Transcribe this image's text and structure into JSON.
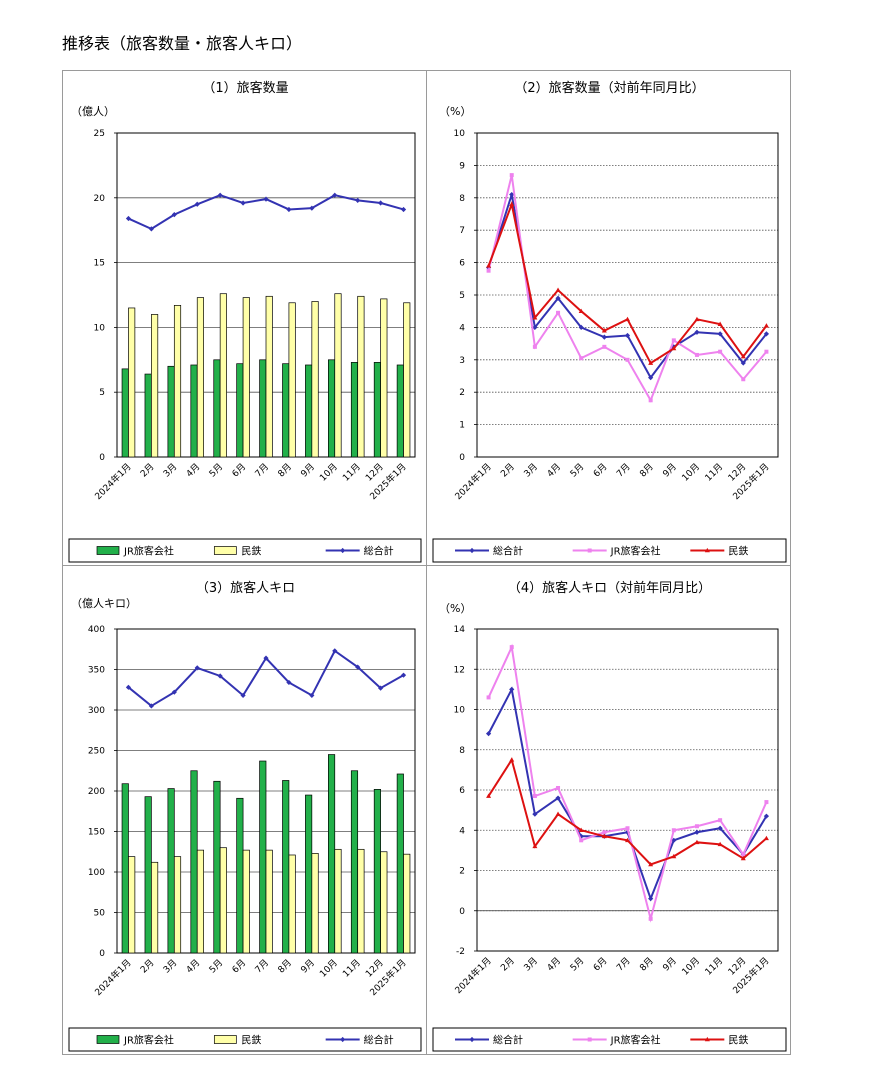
{
  "page_title": "推移表（旅客数量・旅客人キロ）",
  "chart_data": [
    {
      "type": "bar",
      "title": "（1）旅客数量",
      "unit_label": "（億人）",
      "ylim": [
        0,
        25
      ],
      "yticks": [
        "0",
        "5",
        "10",
        "15",
        "20",
        "25"
      ],
      "categories": [
        "2024年1月",
        "2月",
        "3月",
        "4月",
        "5月",
        "6月",
        "7月",
        "8月",
        "9月",
        "10月",
        "11月",
        "12月",
        "2025年1月"
      ],
      "grid": true,
      "legend": "bottom",
      "series": [
        {
          "name": "JR旅客会社",
          "kind": "bar",
          "color": "#22b04a",
          "values": [
            6.8,
            6.4,
            7.0,
            7.1,
            7.5,
            7.2,
            7.5,
            7.2,
            7.1,
            7.5,
            7.3,
            7.3,
            7.1
          ]
        },
        {
          "name": "民鉄",
          "kind": "bar",
          "color": "#ffffa8",
          "values": [
            11.5,
            11.0,
            11.7,
            12.3,
            12.6,
            12.3,
            12.4,
            11.9,
            12.0,
            12.6,
            12.4,
            12.2,
            11.9
          ]
        },
        {
          "name": "総合計",
          "kind": "line",
          "color": "#3333b2",
          "values": [
            18.4,
            17.6,
            18.7,
            19.5,
            20.2,
            19.6,
            19.9,
            19.1,
            19.2,
            20.2,
            19.8,
            19.6,
            19.1
          ]
        }
      ]
    },
    {
      "type": "line",
      "title": "（2）旅客数量（対前年同月比）",
      "unit_label": "（%）",
      "ylim": [
        0,
        10
      ],
      "yticks": [
        "0",
        "1",
        "2",
        "3",
        "4",
        "5",
        "6",
        "7",
        "8",
        "9",
        "10"
      ],
      "categories": [
        "2024年1月",
        "2月",
        "3月",
        "4月",
        "5月",
        "6月",
        "7月",
        "8月",
        "9月",
        "10月",
        "11月",
        "12月",
        "2025年1月"
      ],
      "grid": true,
      "legend": "bottom",
      "series": [
        {
          "name": "総合計",
          "color": "#3333b2",
          "values": [
            5.85,
            8.1,
            4.0,
            4.9,
            4.0,
            3.7,
            3.75,
            2.45,
            3.4,
            3.85,
            3.8,
            2.9,
            3.8
          ]
        },
        {
          "name": "JR旅客会社",
          "color": "#ee82ee",
          "values": [
            5.75,
            8.7,
            3.4,
            4.45,
            3.05,
            3.4,
            3.0,
            1.75,
            3.6,
            3.15,
            3.25,
            2.4,
            3.25
          ]
        },
        {
          "name": "民鉄",
          "color": "#dd1111",
          "values": [
            5.9,
            7.8,
            4.3,
            5.15,
            4.5,
            3.9,
            4.25,
            2.9,
            3.35,
            4.25,
            4.1,
            3.1,
            4.05
          ]
        }
      ]
    },
    {
      "type": "bar",
      "title": "（3）旅客人キロ",
      "unit_label": "（億人キロ）",
      "ylim": [
        0,
        400
      ],
      "yticks": [
        "0",
        "50",
        "100",
        "150",
        "200",
        "250",
        "300",
        "350",
        "400"
      ],
      "categories": [
        "2024年1月",
        "2月",
        "3月",
        "4月",
        "5月",
        "6月",
        "7月",
        "8月",
        "9月",
        "10月",
        "11月",
        "12月",
        "2025年1月"
      ],
      "grid": true,
      "legend": "bottom",
      "series": [
        {
          "name": "JR旅客会社",
          "kind": "bar",
          "color": "#22b04a",
          "values": [
            209,
            193,
            203,
            225,
            212,
            191,
            237,
            213,
            195,
            245,
            225,
            202,
            221
          ]
        },
        {
          "name": "民鉄",
          "kind": "bar",
          "color": "#ffffa8",
          "values": [
            119,
            112,
            119,
            127,
            130,
            127,
            127,
            121,
            123,
            128,
            128,
            125,
            122
          ]
        },
        {
          "name": "総合計",
          "kind": "line",
          "color": "#3333b2",
          "values": [
            328,
            305,
            322,
            352,
            342,
            318,
            364,
            334,
            318,
            373,
            353,
            327,
            343
          ]
        }
      ]
    },
    {
      "type": "line",
      "title": "（4）旅客人キロ（対前年同月比）",
      "unit_label": "（%）",
      "ylim": [
        -2,
        14
      ],
      "yticks": [
        "-2",
        "0",
        "2",
        "4",
        "6",
        "8",
        "10",
        "12",
        "14"
      ],
      "categories": [
        "2024年1月",
        "2月",
        "3月",
        "4月",
        "5月",
        "6月",
        "7月",
        "8月",
        "9月",
        "10月",
        "11月",
        "12月",
        "2025年1月"
      ],
      "grid": true,
      "legend": "bottom",
      "series": [
        {
          "name": "総合計",
          "color": "#3333b2",
          "values": [
            8.8,
            11.0,
            4.8,
            5.6,
            3.7,
            3.7,
            3.9,
            0.6,
            3.5,
            3.9,
            4.1,
            2.8,
            4.7
          ]
        },
        {
          "name": "JR旅客会社",
          "color": "#ee82ee",
          "values": [
            10.6,
            13.1,
            5.7,
            6.1,
            3.5,
            3.9,
            4.1,
            -0.4,
            4.0,
            4.2,
            4.5,
            2.8,
            5.4
          ]
        },
        {
          "name": "民鉄",
          "color": "#dd1111",
          "values": [
            5.7,
            7.5,
            3.2,
            4.8,
            4.0,
            3.7,
            3.5,
            2.3,
            2.7,
            3.4,
            3.3,
            2.6,
            3.6
          ]
        }
      ]
    }
  ]
}
